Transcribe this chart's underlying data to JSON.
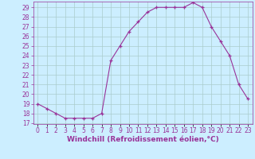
{
  "hours": [
    0,
    1,
    2,
    3,
    4,
    5,
    6,
    7,
    8,
    9,
    10,
    11,
    12,
    13,
    14,
    15,
    16,
    17,
    18,
    19,
    20,
    21,
    22,
    23
  ],
  "values": [
    19.0,
    18.5,
    18.0,
    17.5,
    17.5,
    17.5,
    17.5,
    18.0,
    23.5,
    25.0,
    26.5,
    27.5,
    28.5,
    29.0,
    29.0,
    29.0,
    29.0,
    29.5,
    29.0,
    27.0,
    25.5,
    24.0,
    21.0,
    19.5
  ],
  "line_color": "#993399",
  "marker": "+",
  "bg_color": "#cceeff",
  "grid_color": "#aacccc",
  "xlabel": "Windchill (Refroidissement éolien,°C)",
  "xlim": [
    -0.5,
    23.5
  ],
  "ylim": [
    17,
    29.5
  ],
  "yticks": [
    17,
    18,
    19,
    20,
    21,
    22,
    23,
    24,
    25,
    26,
    27,
    28,
    29
  ],
  "xtick_labels": [
    "0",
    "1",
    "2",
    "3",
    "4",
    "5",
    "6",
    "7",
    "8",
    "9",
    "10",
    "11",
    "12",
    "13",
    "14",
    "15",
    "16",
    "17",
    "18",
    "19",
    "20",
    "21",
    "22",
    "23"
  ],
  "tick_color": "#993399",
  "label_color": "#993399",
  "label_fontsize": 6.5,
  "tick_fontsize": 5.5
}
